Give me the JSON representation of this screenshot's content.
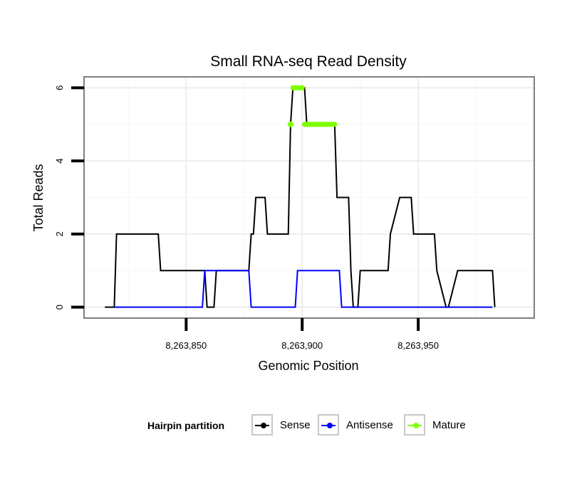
{
  "chart_data": {
    "type": "line",
    "title": "Small RNA-seq Read Density",
    "xlabel": "Genomic Position",
    "ylabel": "Total Reads",
    "xlim": [
      8263806,
      8264000
    ],
    "ylim": [
      -0.3,
      6.3
    ],
    "x_ticks": [
      8263850,
      8263900,
      8263950
    ],
    "x_tick_labels": [
      "8,263,850",
      "8,263,900",
      "8,263,950"
    ],
    "y_ticks": [
      0,
      2,
      4,
      6
    ],
    "y_tick_labels": [
      "0",
      "2",
      "4",
      "6"
    ],
    "grid": true,
    "legend_position": "bottom",
    "legend_title": "Hairpin partition",
    "series": [
      {
        "name": "Sense",
        "color": "#000000",
        "x": [
          8263815,
          8263819,
          8263820,
          8263838,
          8263839,
          8263858,
          8263859,
          8263862,
          8263863,
          8263877,
          8263878,
          8263879,
          8263880,
          8263884,
          8263885,
          8263894,
          8263895,
          8263896,
          8263897,
          8263901,
          8263902,
          8263914,
          8263915,
          8263920,
          8263921,
          8263922,
          8263924,
          8263925,
          8263937,
          8263938,
          8263942,
          8263943,
          8263947,
          8263948,
          8263957,
          8263958,
          8263962,
          8263963,
          8263967,
          8263968,
          8263982,
          8263983
        ],
        "values": [
          0,
          0,
          2,
          2,
          1,
          1,
          0,
          0,
          1,
          1,
          2,
          2,
          3,
          3,
          2,
          2,
          5,
          6,
          6,
          6,
          5,
          5,
          3,
          3,
          1,
          0,
          0,
          1,
          1,
          2,
          3,
          3,
          3,
          2,
          2,
          1,
          0,
          0,
          1,
          1,
          1,
          0
        ]
      },
      {
        "name": "Antisense",
        "color": "#0000ff",
        "x": [
          8263819,
          8263857,
          8263858,
          8263877,
          8263878,
          8263897,
          8263898,
          8263916,
          8263917,
          8263982
        ],
        "values": [
          0,
          0,
          1,
          1,
          0,
          0,
          1,
          1,
          0,
          0
        ]
      },
      {
        "name": "Mature",
        "color": "#7fff00",
        "segments": [
          {
            "x": [
              8263895,
              8263895
            ],
            "y": 5
          },
          {
            "x": [
              8263896,
              8263900
            ],
            "y": 6
          },
          {
            "x": [
              8263901,
              8263914
            ],
            "y": 5
          }
        ]
      }
    ]
  },
  "legend": {
    "title": "Hairpin partition",
    "items": [
      {
        "label": "Sense",
        "color": "#000000"
      },
      {
        "label": "Antisense",
        "color": "#0000ff"
      },
      {
        "label": "Mature",
        "color": "#7fff00"
      }
    ]
  }
}
